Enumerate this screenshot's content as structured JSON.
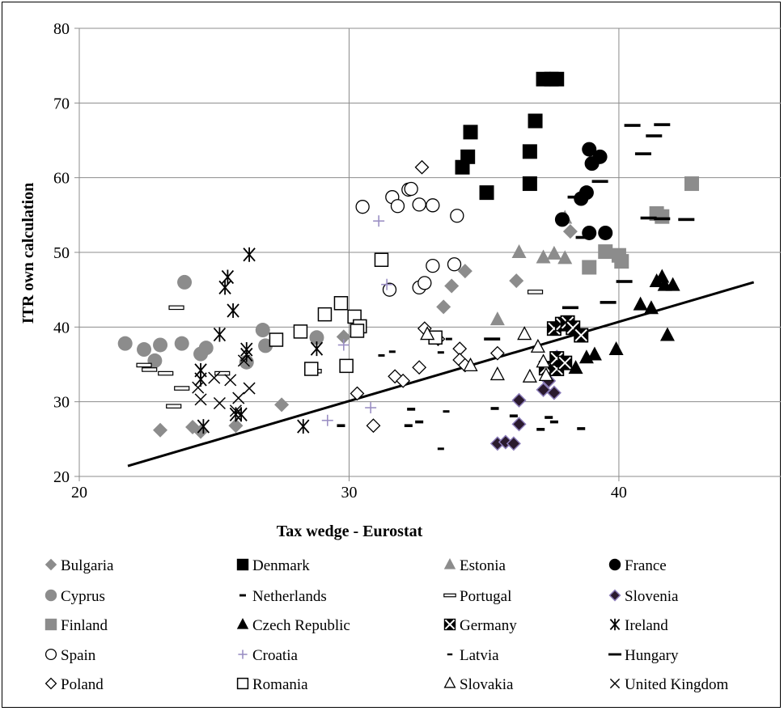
{
  "chart_data": {
    "type": "scatter",
    "title": "",
    "xlabel": "Tax wedge - Eurostat",
    "ylabel": "ITR own calculation",
    "xlim": [
      20,
      46
    ],
    "ylim": [
      20,
      80
    ],
    "x_ticks": [
      "20",
      "30",
      "40"
    ],
    "y_ticks": [
      "20",
      "30",
      "40",
      "50",
      "60",
      "70",
      "80"
    ],
    "grid": true,
    "legend_position": "bottom",
    "trendline": {
      "x": [
        21.8,
        45.0
      ],
      "y": [
        21.4,
        46.0
      ]
    },
    "series": [
      {
        "name": "Bulgaria",
        "marker": "diamond",
        "color": "#8c8c8c",
        "points": [
          [
            23.0,
            26.2
          ],
          [
            24.2,
            26.6
          ],
          [
            24.5,
            26.0
          ],
          [
            25.8,
            26.8
          ],
          [
            27.5,
            29.6
          ],
          [
            29.8,
            38.7
          ],
          [
            33.5,
            42.7
          ],
          [
            33.8,
            45.5
          ],
          [
            34.3,
            47.5
          ],
          [
            36.2,
            46.2
          ],
          [
            38.2,
            52.8
          ]
        ]
      },
      {
        "name": "Denmark",
        "marker": "square",
        "color": "#000000",
        "points": [
          [
            34.2,
            61.4
          ],
          [
            34.4,
            62.8
          ],
          [
            34.5,
            66.1
          ],
          [
            35.1,
            58.0
          ],
          [
            36.7,
            59.2
          ],
          [
            36.7,
            63.5
          ],
          [
            36.9,
            67.6
          ],
          [
            37.2,
            73.2
          ],
          [
            37.5,
            73.2
          ],
          [
            37.7,
            73.2
          ]
        ]
      },
      {
        "name": "Estonia",
        "marker": "triangle",
        "color": "#8c8c8c",
        "points": [
          [
            35.5,
            41.0
          ],
          [
            36.3,
            50.0
          ],
          [
            37.2,
            49.3
          ],
          [
            37.6,
            49.8
          ],
          [
            38.0,
            49.2
          ],
          [
            38.0,
            54.6
          ]
        ]
      },
      {
        "name": "France",
        "marker": "circle",
        "color": "#000000",
        "points": [
          [
            37.9,
            54.4
          ],
          [
            38.6,
            57.2
          ],
          [
            38.8,
            58.0
          ],
          [
            38.9,
            52.6
          ],
          [
            38.9,
            63.8
          ],
          [
            39.0,
            61.9
          ],
          [
            39.3,
            62.8
          ],
          [
            39.5,
            52.6
          ]
        ]
      },
      {
        "name": "Cyprus",
        "marker": "circle",
        "color": "#8c8c8c",
        "points": [
          [
            21.7,
            37.8
          ],
          [
            22.4,
            37.0
          ],
          [
            22.8,
            35.5
          ],
          [
            23.0,
            37.6
          ],
          [
            23.8,
            37.8
          ],
          [
            23.9,
            46.0
          ],
          [
            24.5,
            36.4
          ],
          [
            24.7,
            37.2
          ],
          [
            26.2,
            35.3
          ],
          [
            26.8,
            39.6
          ],
          [
            26.9,
            37.5
          ],
          [
            28.8,
            38.6
          ]
        ]
      },
      {
        "name": "Netherlands",
        "marker": "dash",
        "color": "#000000",
        "points": [
          [
            29.7,
            26.8
          ],
          [
            32.2,
            26.8
          ],
          [
            32.3,
            29.0
          ],
          [
            32.6,
            27.3
          ],
          [
            35.4,
            29.1
          ],
          [
            36.1,
            28.1
          ],
          [
            37.1,
            26.3
          ],
          [
            37.4,
            27.9
          ],
          [
            37.6,
            27.3
          ],
          [
            38.6,
            26.4
          ]
        ]
      },
      {
        "name": "Portugal",
        "marker": "hbar",
        "color": "#000000",
        "points": [
          [
            22.4,
            34.9
          ],
          [
            22.6,
            34.3
          ],
          [
            23.2,
            33.8
          ],
          [
            23.5,
            29.4
          ],
          [
            23.8,
            31.8
          ],
          [
            23.6,
            42.6
          ],
          [
            25.3,
            33.8
          ],
          [
            28.7,
            34.1
          ],
          [
            36.9,
            44.7
          ]
        ]
      },
      {
        "name": "Slovenia",
        "marker": "diamond-purple",
        "color": "#000000",
        "points": [
          [
            35.5,
            24.4
          ],
          [
            35.8,
            24.6
          ],
          [
            36.1,
            24.4
          ],
          [
            36.3,
            27.0
          ],
          [
            36.3,
            30.2
          ],
          [
            37.2,
            31.6
          ],
          [
            37.4,
            32.8
          ],
          [
            37.6,
            31.2
          ],
          [
            37.7,
            36.0
          ]
        ]
      },
      {
        "name": "Finland",
        "marker": "square",
        "color": "#8c8c8c",
        "points": [
          [
            38.9,
            48.0
          ],
          [
            39.5,
            50.1
          ],
          [
            40.0,
            49.6
          ],
          [
            40.1,
            48.8
          ],
          [
            41.4,
            55.2
          ],
          [
            41.6,
            54.8
          ],
          [
            42.7,
            59.2
          ]
        ]
      },
      {
        "name": "Czech Republic",
        "marker": "triangle",
        "color": "#000000",
        "points": [
          [
            38.4,
            34.5
          ],
          [
            38.8,
            35.9
          ],
          [
            39.1,
            36.3
          ],
          [
            39.9,
            37.0
          ],
          [
            40.8,
            43.0
          ],
          [
            41.2,
            42.5
          ],
          [
            41.4,
            46.1
          ],
          [
            41.6,
            46.7
          ],
          [
            41.7,
            45.6
          ],
          [
            42.0,
            45.6
          ],
          [
            41.8,
            38.9
          ]
        ]
      },
      {
        "name": "Germany",
        "marker": "xsquare",
        "color": "#000000",
        "points": [
          [
            37.3,
            34.5
          ],
          [
            37.7,
            34.4
          ],
          [
            37.6,
            39.8
          ],
          [
            37.9,
            40.4
          ],
          [
            38.1,
            40.6
          ],
          [
            38.3,
            39.9
          ],
          [
            38.6,
            38.9
          ],
          [
            37.7,
            35.8
          ],
          [
            38.0,
            35.2
          ]
        ]
      },
      {
        "name": "Ireland",
        "marker": "asterisk",
        "color": "#000000",
        "points": [
          [
            24.6,
            26.7
          ],
          [
            24.5,
            33.0
          ],
          [
            24.5,
            34.2
          ],
          [
            25.2,
            39.0
          ],
          [
            25.4,
            45.3
          ],
          [
            25.5,
            46.7
          ],
          [
            25.7,
            42.2
          ],
          [
            25.8,
            28.3
          ],
          [
            26.0,
            28.3
          ],
          [
            26.2,
            36.3
          ],
          [
            26.2,
            37.0
          ],
          [
            26.3,
            49.7
          ],
          [
            28.3,
            26.7
          ],
          [
            28.8,
            37.1
          ]
        ]
      },
      {
        "name": "Spain",
        "marker": "circle-open",
        "color": "#000000",
        "points": [
          [
            30.5,
            56.1
          ],
          [
            31.5,
            45.0
          ],
          [
            31.6,
            57.4
          ],
          [
            31.8,
            56.2
          ],
          [
            32.2,
            58.4
          ],
          [
            32.3,
            58.5
          ],
          [
            32.6,
            56.4
          ],
          [
            32.6,
            45.3
          ],
          [
            32.8,
            45.9
          ],
          [
            33.1,
            56.3
          ],
          [
            33.1,
            48.2
          ],
          [
            33.9,
            48.4
          ],
          [
            34.0,
            54.9
          ]
        ]
      },
      {
        "name": "Croatia",
        "marker": "plus",
        "color": "#9b8fc4",
        "points": [
          [
            29.2,
            27.5
          ],
          [
            29.8,
            37.6
          ],
          [
            30.8,
            29.2
          ],
          [
            31.1,
            54.2
          ],
          [
            31.4,
            45.7
          ]
        ]
      },
      {
        "name": "Latvia",
        "marker": "smalldash",
        "color": "#000000",
        "points": [
          [
            31.2,
            36.2
          ],
          [
            31.6,
            36.7
          ],
          [
            33.4,
            23.7
          ],
          [
            33.6,
            28.7
          ],
          [
            33.4,
            36.6
          ],
          [
            33.7,
            38.4
          ],
          [
            33.1,
            39.3
          ]
        ]
      },
      {
        "name": "Hungary",
        "marker": "thickdash",
        "color": "#000000",
        "points": [
          [
            35.3,
            38.4
          ],
          [
            38.2,
            42.6
          ],
          [
            38.4,
            57.4
          ],
          [
            38.7,
            52.0
          ],
          [
            39.3,
            59.5
          ],
          [
            39.6,
            43.3
          ],
          [
            40.2,
            46.1
          ],
          [
            40.9,
            63.2
          ],
          [
            41.1,
            54.6
          ],
          [
            41.3,
            65.6
          ],
          [
            41.6,
            67.1
          ],
          [
            41.6,
            54.5
          ],
          [
            42.5,
            54.4
          ],
          [
            40.5,
            67.0
          ]
        ]
      },
      {
        "name": "Poland",
        "marker": "diamond-open",
        "color": "#000000",
        "points": [
          [
            30.3,
            31.1
          ],
          [
            30.9,
            26.8
          ],
          [
            31.7,
            33.4
          ],
          [
            32.0,
            32.8
          ],
          [
            32.6,
            34.6
          ],
          [
            32.8,
            39.8
          ],
          [
            33.3,
            38.4
          ],
          [
            32.7,
            61.4
          ],
          [
            34.1,
            37.1
          ],
          [
            34.1,
            35.6
          ],
          [
            34.3,
            34.9
          ],
          [
            35.5,
            36.5
          ]
        ]
      },
      {
        "name": "Romania",
        "marker": "square-open",
        "color": "#000000",
        "points": [
          [
            27.3,
            38.3
          ],
          [
            28.2,
            39.4
          ],
          [
            28.6,
            34.4
          ],
          [
            29.1,
            41.7
          ],
          [
            29.7,
            43.2
          ],
          [
            29.9,
            34.8
          ],
          [
            30.2,
            41.4
          ],
          [
            30.4,
            40.1
          ],
          [
            30.3,
            39.5
          ],
          [
            31.2,
            49.0
          ],
          [
            33.2,
            38.6
          ]
        ]
      },
      {
        "name": "Slovakia",
        "marker": "triangle-open",
        "color": "#000000",
        "points": [
          [
            32.9,
            39.0
          ],
          [
            34.5,
            34.8
          ],
          [
            35.5,
            33.6
          ],
          [
            36.5,
            39.0
          ],
          [
            36.7,
            33.3
          ],
          [
            37.0,
            37.3
          ],
          [
            37.3,
            33.5
          ],
          [
            37.2,
            35.3
          ]
        ]
      },
      {
        "name": "United Kingdom",
        "marker": "x",
        "color": "#000000",
        "points": [
          [
            24.4,
            31.9
          ],
          [
            24.5,
            30.3
          ],
          [
            25.0,
            33.2
          ],
          [
            25.2,
            29.8
          ],
          [
            25.6,
            32.9
          ],
          [
            25.8,
            28.8
          ],
          [
            25.9,
            30.5
          ],
          [
            26.1,
            35.5
          ],
          [
            26.3,
            31.8
          ]
        ]
      }
    ]
  }
}
